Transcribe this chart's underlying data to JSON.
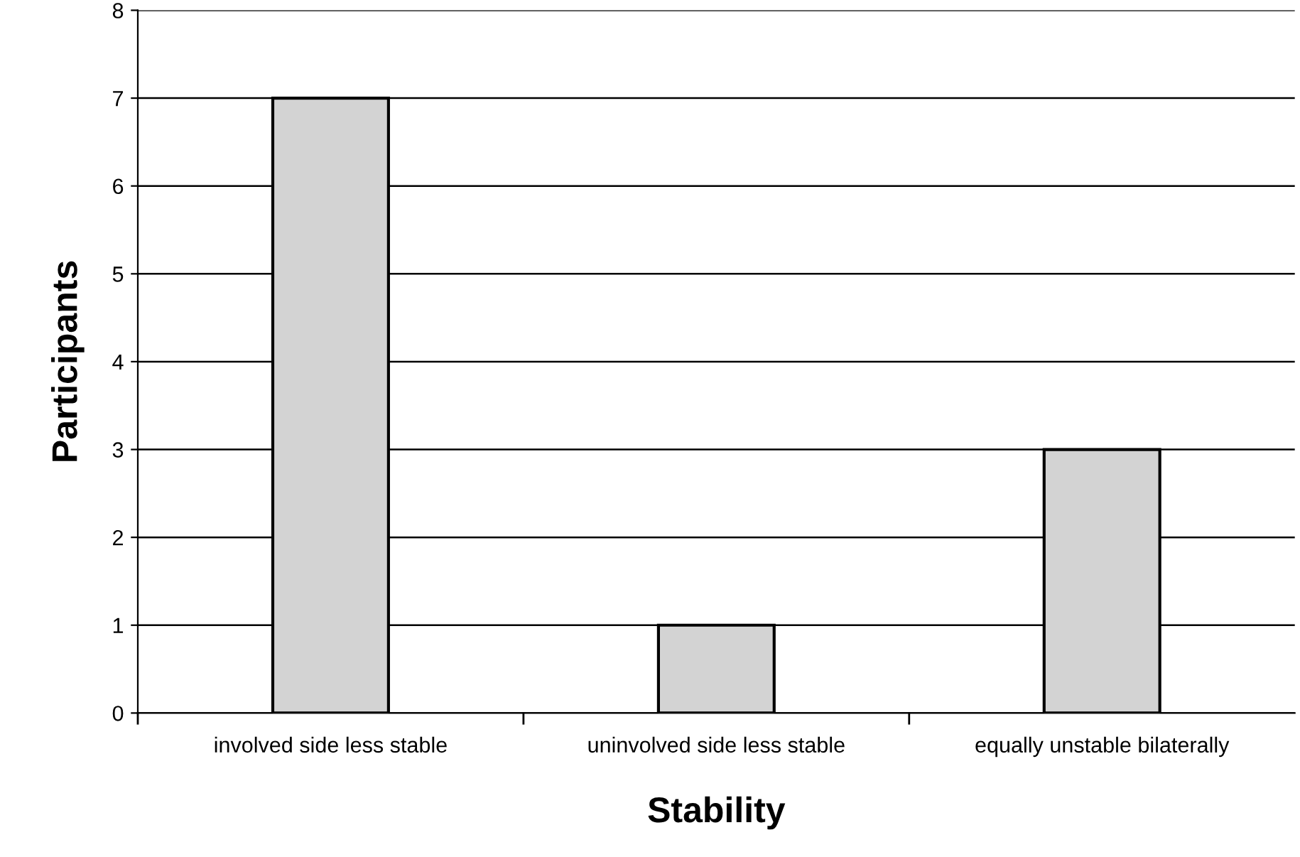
{
  "chart_data": {
    "type": "bar",
    "xlabel": "Stability",
    "ylabel": "Participants",
    "categories": [
      "involved side less stable",
      "uninvolved side less stable",
      "equally unstable bilaterally"
    ],
    "values": [
      7,
      1,
      3
    ],
    "color": "#d3d3d3",
    "ylim": [
      0,
      8
    ],
    "yticks": [
      0,
      1,
      2,
      3,
      4,
      5,
      6,
      7,
      8
    ],
    "grid": "y"
  }
}
